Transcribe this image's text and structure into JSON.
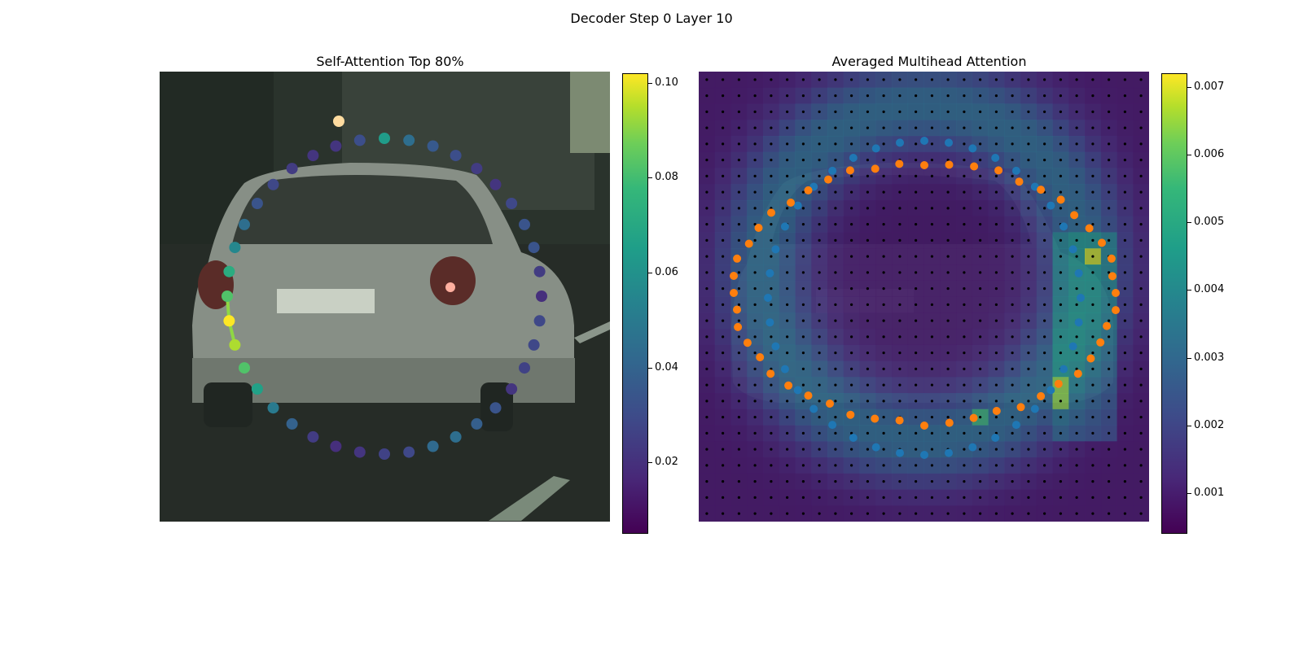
{
  "figure": {
    "title": "Decoder Step 0 Layer 10"
  },
  "chart_data": [
    {
      "type": "scatter",
      "title": "Self-Attention Top 80%",
      "colorbar": {
        "min": 0.005,
        "max": 0.102,
        "ticks": [
          "0.02",
          "0.04",
          "0.06",
          "0.08",
          "0.10"
        ],
        "tick_values": [
          0.02,
          0.04,
          0.06,
          0.08,
          0.1
        ],
        "colormap": "viridis"
      },
      "description_points": "40 points arranged in a ring over a car photo, colored by self-attention weight",
      "weights": [
        0.018,
        0.026,
        0.026,
        0.024,
        0.02,
        0.03,
        0.034,
        0.04,
        0.038,
        0.026,
        0.024,
        0.02,
        0.018,
        0.022,
        0.035,
        0.045,
        0.06,
        0.075,
        0.09,
        0.102,
        0.075,
        0.065,
        0.05,
        0.04,
        0.03,
        0.026,
        0.022,
        0.02,
        0.02,
        0.028,
        0.058,
        0.04,
        0.032,
        0.028,
        0.022,
        0.02,
        0.026,
        0.03,
        0.03,
        0.022
      ],
      "highlight_path": [
        18,
        19,
        20
      ]
    },
    {
      "type": "heatmap",
      "title": "Averaged Multihead Attention",
      "colorbar": {
        "min": 0.0004,
        "max": 0.0072,
        "ticks": [
          "0.001",
          "0.002",
          "0.003",
          "0.004",
          "0.005",
          "0.006",
          "0.007"
        ],
        "tick_values": [
          0.001,
          0.002,
          0.003,
          0.004,
          0.005,
          0.006,
          0.007
        ],
        "colormap": "viridis"
      },
      "grid": {
        "rows": 28,
        "cols": 28
      },
      "series": [
        {
          "name": "",
          "color": "#1f77b4",
          "marker": "blue points, inner ring"
        },
        {
          "name": "",
          "color": "#ff7f0e",
          "marker": "orange points, outer ring"
        }
      ],
      "hotspots": [
        {
          "row": 11,
          "col": 24,
          "value": 0.0066
        },
        {
          "row": 19,
          "col": 22,
          "value": 0.006
        },
        {
          "row": 20,
          "col": 22,
          "value": 0.006
        },
        {
          "row": 21,
          "col": 17,
          "value": 0.005
        }
      ]
    }
  ],
  "colors": {
    "blue": "#1f77b4",
    "orange": "#ff7f0e",
    "path": "#8fd744"
  }
}
